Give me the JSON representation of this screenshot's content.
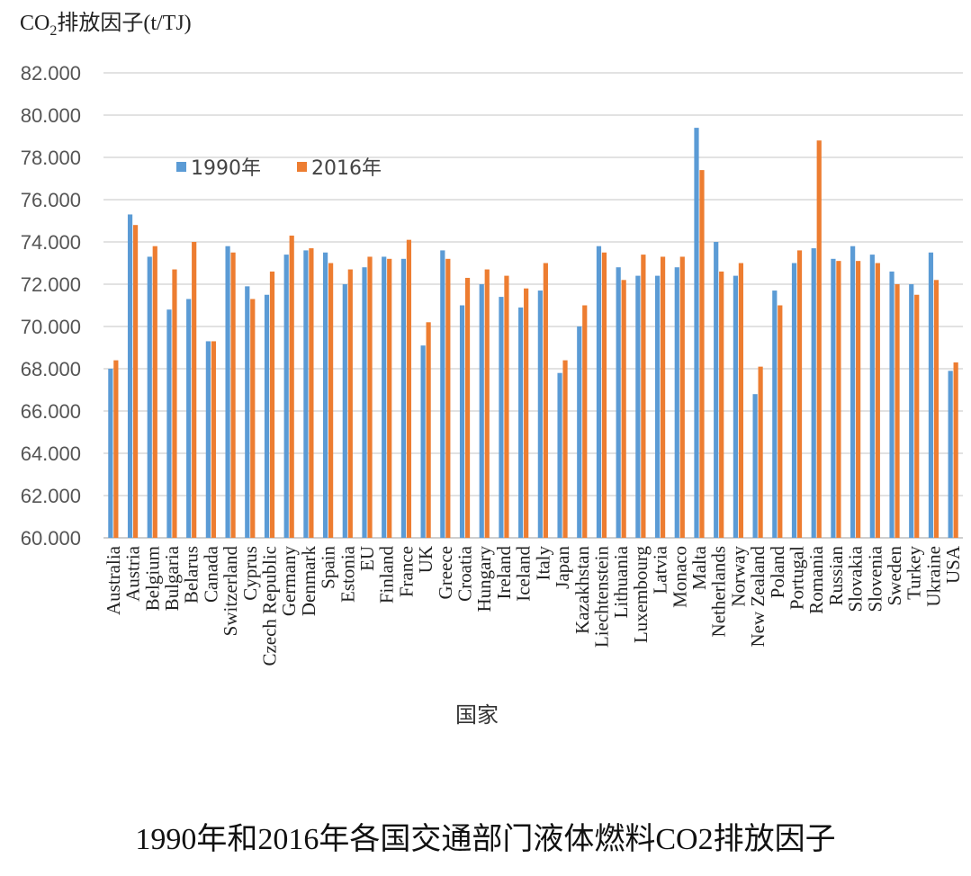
{
  "caption": "1990年和2016年各国交通部门液体燃料CO2排放因子",
  "chart_data": {
    "type": "bar",
    "ylabel_prefix": "CO",
    "ylabel_sub": "2",
    "ylabel_suffix": "排放因子(t/TJ)",
    "xlabel": "国家",
    "ylim": [
      60,
      82
    ],
    "yticks": [
      60,
      62,
      64,
      66,
      68,
      70,
      72,
      74,
      76,
      78,
      80,
      82
    ],
    "ytick_labels": [
      "60.000",
      "62.000",
      "64.000",
      "66.000",
      "68.000",
      "70.000",
      "72.000",
      "74.000",
      "76.000",
      "78.000",
      "80.000",
      "82.000"
    ],
    "grid": true,
    "legend_position": "top-left",
    "categories": [
      "Australia",
      "Austria",
      "Belgium",
      "Bulgaria",
      "Belarus",
      "Canada",
      "Switzerland",
      "Cyprus",
      "Czech Republic",
      "Germany",
      "Denmark",
      "Spain",
      "Estonia",
      "EU",
      "Finland",
      "France",
      "UK",
      "Greece",
      "Croatia",
      "Hungary",
      "Ireland",
      "Iceland",
      "Italy",
      "Japan",
      "Kazakhstan",
      "Liechtenstein",
      "Lithuania",
      "Luxembourg",
      "Latvia",
      "Monaco",
      "Malta",
      "Netherlands",
      "Norway",
      "New Zealand",
      "Poland",
      "Portugal",
      "Romania",
      "Russian",
      "Slovakia",
      "Slovenia",
      "Sweden",
      "Turkey",
      "Ukraine",
      "USA"
    ],
    "series": [
      {
        "name": "1990年",
        "color": "#5B9BD5",
        "values": [
          68.0,
          75.3,
          73.3,
          70.8,
          71.3,
          69.3,
          73.8,
          71.9,
          71.5,
          73.4,
          73.6,
          73.5,
          72.0,
          72.8,
          73.3,
          73.2,
          69.1,
          73.6,
          71.0,
          72.0,
          71.4,
          70.9,
          71.7,
          67.8,
          70.0,
          73.8,
          72.8,
          72.4,
          72.4,
          72.8,
          79.4,
          74.0,
          72.4,
          66.8,
          71.7,
          73.0,
          73.7,
          73.2,
          73.8,
          73.4,
          72.6,
          72.0,
          73.5,
          67.9
        ]
      },
      {
        "name": "2016年",
        "color": "#ED7D31",
        "values": [
          68.4,
          74.8,
          73.8,
          72.7,
          74.0,
          69.3,
          73.5,
          71.3,
          72.6,
          74.3,
          73.7,
          73.0,
          72.7,
          73.3,
          73.2,
          74.1,
          70.2,
          73.2,
          72.3,
          72.7,
          72.4,
          71.8,
          73.0,
          68.4,
          71.0,
          73.5,
          72.2,
          73.4,
          73.3,
          73.3,
          77.4,
          72.6,
          73.0,
          68.1,
          71.0,
          73.6,
          78.8,
          73.1,
          73.1,
          73.0,
          72.0,
          71.5,
          72.2,
          68.3
        ]
      }
    ]
  }
}
